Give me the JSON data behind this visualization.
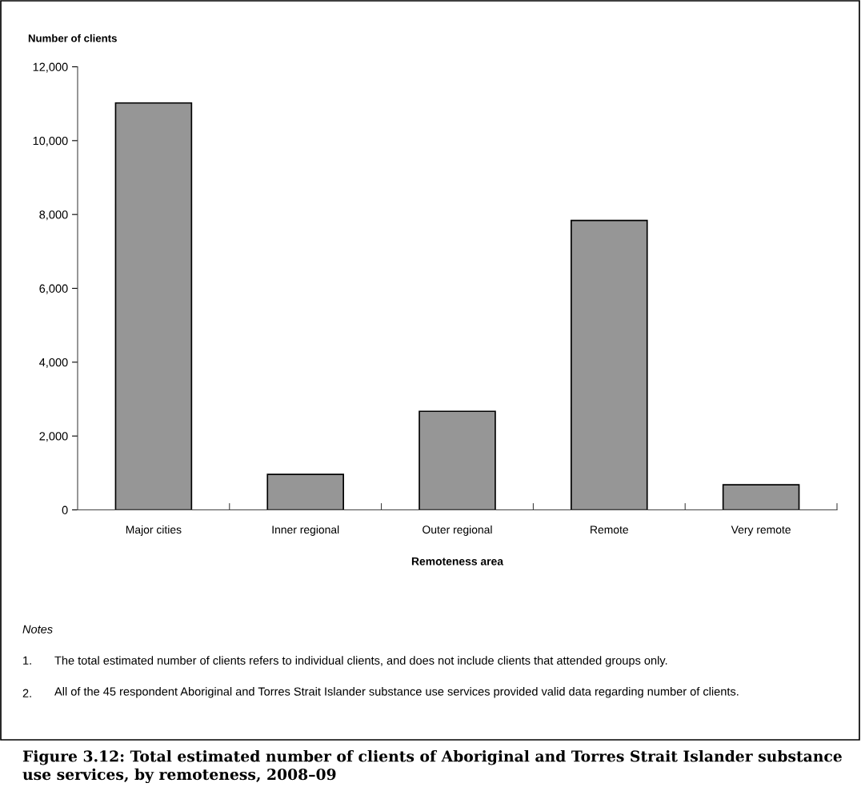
{
  "chart_data": {
    "type": "bar",
    "title": "Figure 3.12: Total estimated number of clients of Aboriginal and Torres Strait Islander substance use services, by remoteness, 2008–09",
    "ylabel": "Number of clients",
    "xlabel": "Remoteness area",
    "categories": [
      "Major cities",
      "Inner regional",
      "Outer regional",
      "Remote",
      "Very remote"
    ],
    "values": [
      11020,
      960,
      2670,
      7840,
      680
    ],
    "color": "#969696",
    "ylim": [
      0,
      12000
    ],
    "yticks": [
      {
        "value": 0,
        "label": "0"
      },
      {
        "value": 2000,
        "label": "2,000"
      },
      {
        "value": 4000,
        "label": "4,000"
      },
      {
        "value": 6000,
        "label": "6,000"
      },
      {
        "value": 8000,
        "label": "8,000"
      },
      {
        "value": 10000,
        "label": "10,000"
      },
      {
        "value": 12000,
        "label": "12,000"
      }
    ],
    "grid": false,
    "legend": false,
    "annotations": [
      "Notes",
      "1.\tThe total estimated number of clients refers to individual clients, and does not include clients that attended groups only.",
      "2.\tAll of the 45 respondent Aboriginal and Torres Strait Islander substance use services provided valid data regarding number of clients."
    ]
  }
}
